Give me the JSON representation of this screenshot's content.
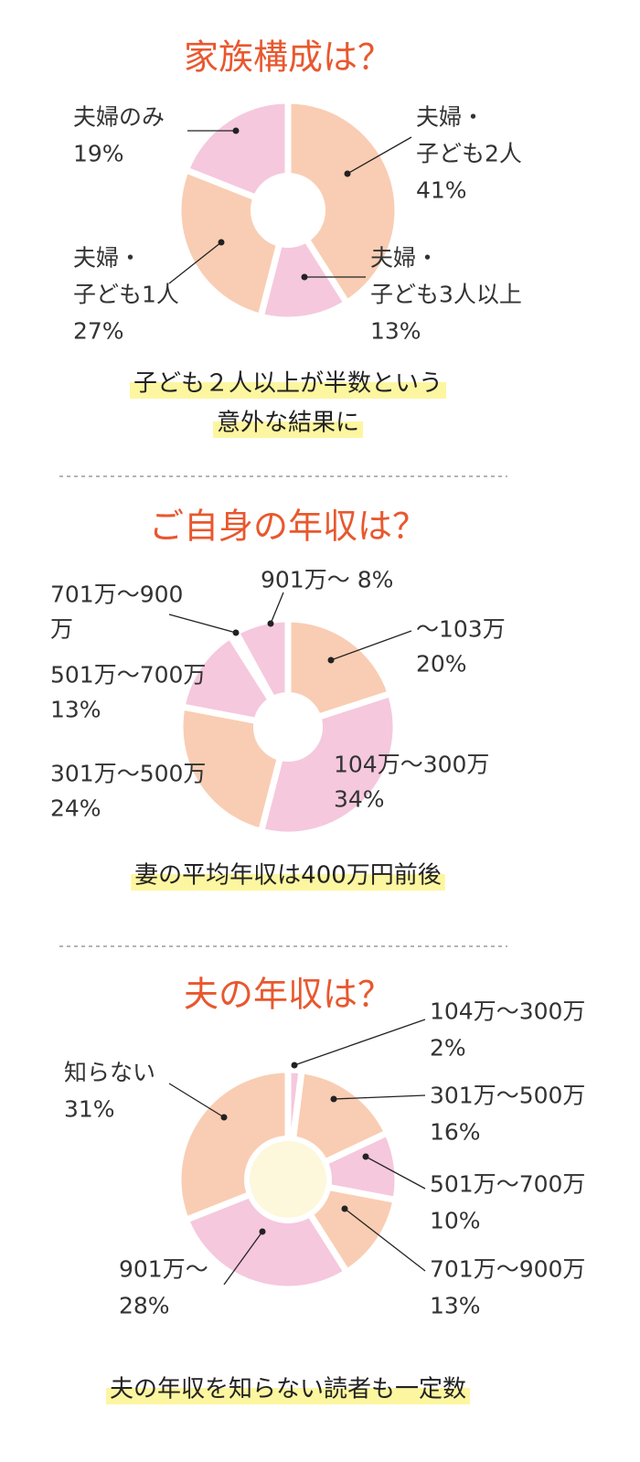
{
  "chart_data": [
    {
      "type": "pie",
      "title": "家族構成は？",
      "categories": [
        [
          "夫婦・",
          "子ども2人"
        ],
        [
          "夫婦・",
          "子ども3人以上"
        ],
        [
          "夫婦・",
          "子ども1人"
        ],
        [
          "夫婦のみ"
        ]
      ],
      "values": [
        41,
        13,
        27,
        19
      ],
      "value_labels": [
        "41%",
        "13%",
        "27%",
        "19%"
      ],
      "colors": [
        "#f9cdb3",
        "#f5c8dd",
        "#f9cdb3",
        "#f5c8dd"
      ],
      "hole_color": "#ffffff",
      "note": [
        "子ども２人以上が半数という",
        "意外な結果に"
      ]
    },
    {
      "type": "pie",
      "title": "ご自身の年収は？",
      "categories": [
        [
          "〜103万"
        ],
        [
          "104万〜300万"
        ],
        [
          "301万〜500万"
        ],
        [
          "501万〜700万"
        ],
        [
          "701万〜900",
          "万"
        ],
        [
          "901万〜"
        ]
      ],
      "values": [
        20,
        34,
        24,
        13,
        1,
        8
      ],
      "value_labels": [
        "20%",
        "34%",
        "24%",
        "13%",
        null,
        "8%"
      ],
      "colors": [
        "#f9cdb3",
        "#f5c8dd",
        "#f9cdb3",
        "#f5c8dd",
        "#f9cdb3",
        "#f5c8dd"
      ],
      "hole_color": "#ffffff",
      "note": [
        "妻の平均年収は400万円前後"
      ]
    },
    {
      "type": "pie",
      "title": "夫の年収は？",
      "categories": [
        [
          "104万〜300万"
        ],
        [
          "301万〜500万"
        ],
        [
          "501万〜700万"
        ],
        [
          "701万〜900万"
        ],
        [
          "901万〜"
        ],
        [
          "知らない"
        ]
      ],
      "values": [
        2,
        16,
        10,
        13,
        28,
        31
      ],
      "value_labels": [
        "2%",
        "16%",
        "10%",
        "13%",
        "28%",
        "31%"
      ],
      "colors": [
        "#f5c8dd",
        "#f9cdb3",
        "#f5c8dd",
        "#f9cdb3",
        "#f5c8dd",
        "#f9cdb3"
      ],
      "hole_color": "#fdf8dc",
      "note": [
        "夫の年収を知らない読者も一定数"
      ]
    }
  ]
}
